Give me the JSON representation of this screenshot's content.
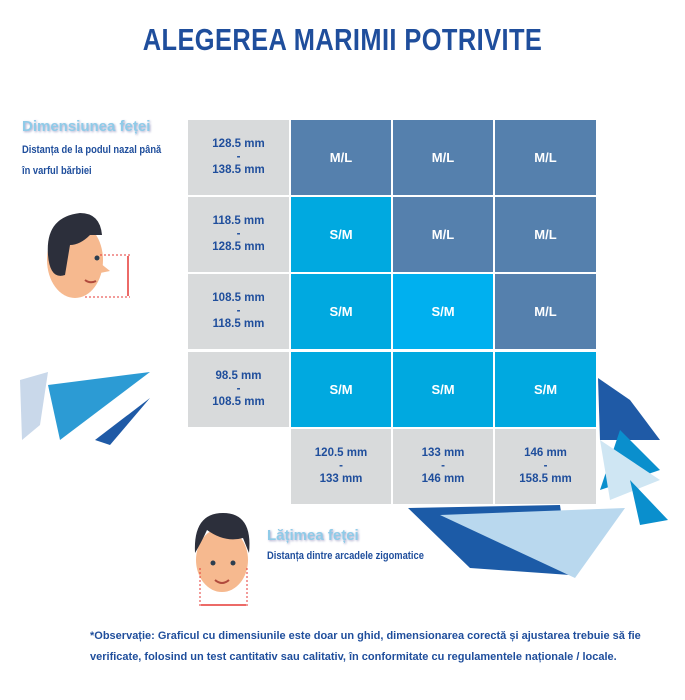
{
  "title": "ALEGEREA MARIMII POTRIVITE",
  "height_section": {
    "heading": "Dimensiunea feței",
    "description_line1": "Distanța de la podul nazal până",
    "description_line2": "în varful bărbiei"
  },
  "width_section": {
    "heading": "Lățimea feței",
    "description": "Distanța dintre arcadele zigomatice"
  },
  "rows": [
    {
      "from": "128.5 mm",
      "sep": "-",
      "to": "138.5 mm",
      "sizes": [
        "M/L",
        "M/L",
        "M/L"
      ]
    },
    {
      "from": "118.5 mm",
      "sep": "-",
      "to": "128.5 mm",
      "sizes": [
        "S/M",
        "M/L",
        "M/L"
      ]
    },
    {
      "from": "108.5 mm",
      "sep": "-",
      "to": "118.5 mm",
      "sizes": [
        "S/M",
        "S/M",
        "M/L"
      ]
    },
    {
      "from": "98.5 mm",
      "sep": "-",
      "to": "108.5 mm",
      "sizes": [
        "S/M",
        "S/M",
        "S/M"
      ]
    }
  ],
  "columns": [
    {
      "from": "120.5 mm",
      "sep": "-",
      "to": "133 mm"
    },
    {
      "from": "133 mm",
      "sep": "-",
      "to": "146 mm"
    },
    {
      "from": "146 mm",
      "sep": "-",
      "to": "158.5 mm"
    }
  ],
  "note": "*Observație: Graficul cu dimensiunile este doar un ghid, dimensionarea corectă și ajustarea trebuie să fie verificate, folosind un test cantitativ sau calitativ, în conformitate cu regulamentele naționale / locale.",
  "colors": {
    "title": "#1f4e9c",
    "ml": "#5580ad",
    "sm": "#00a9e0",
    "gray": "#d8dadb"
  }
}
